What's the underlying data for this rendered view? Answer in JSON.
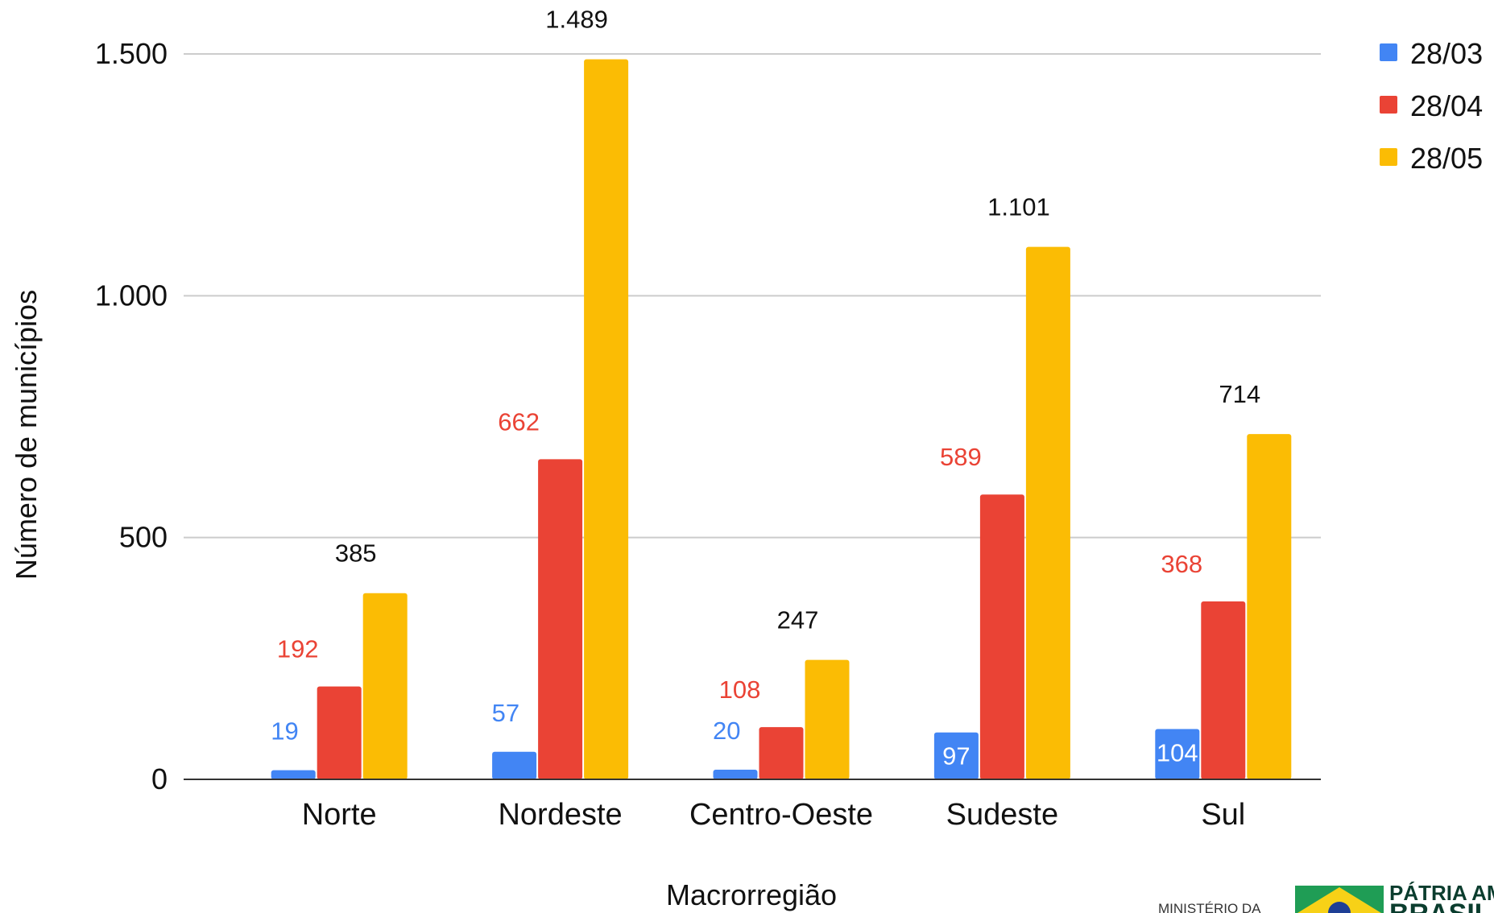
{
  "chart_data": {
    "type": "bar",
    "categories": [
      "Norte",
      "Nordeste",
      "Centro-Oeste",
      "Sudeste",
      "Sul"
    ],
    "series": [
      {
        "name": "28/03",
        "color": "#4285F4",
        "values": [
          19,
          57,
          20,
          97,
          104
        ],
        "labels": [
          "19",
          "57",
          "20",
          "97",
          "104"
        ]
      },
      {
        "name": "28/04",
        "color": "#EA4335",
        "values": [
          192,
          662,
          108,
          589,
          368
        ],
        "labels": [
          "192",
          "662",
          "108",
          "589",
          "368"
        ]
      },
      {
        "name": "28/05",
        "color": "#FBBC04",
        "values": [
          385,
          1489,
          247,
          1101,
          714
        ],
        "labels": [
          "385",
          "1.489",
          "247",
          "1.101",
          "714"
        ]
      }
    ],
    "label_colors": [
      "#4285F4",
      "#EA4335",
      "#111111"
    ],
    "ylabel": "Número de municípios",
    "xlabel": "Macrorregião",
    "ylim": [
      0,
      1500
    ],
    "yticks": [
      0,
      500,
      1000,
      1500
    ],
    "ytick_labels": [
      "0",
      "500",
      "1.000",
      "1.500"
    ],
    "grid": true,
    "legend_position": "top-right"
  },
  "footer": {
    "ministry_text": "MINISTÉRIO DA",
    "brand_text": "PÁTRIA AMADA",
    "brand_text_2": "BRASIL"
  }
}
